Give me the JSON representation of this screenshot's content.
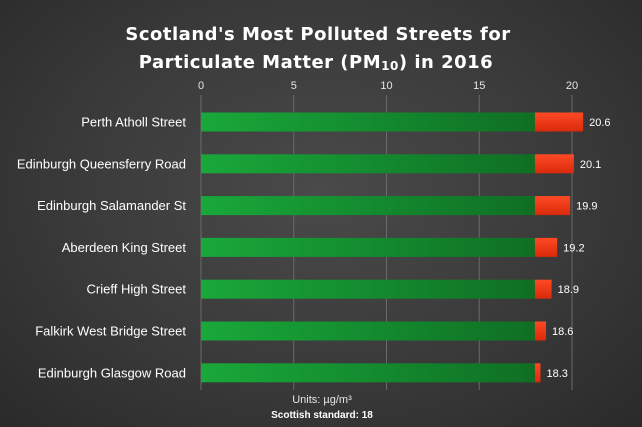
{
  "chart_data": {
    "type": "bar",
    "orientation": "horizontal",
    "title_line1": "Scotland's Most Polluted Streets for",
    "title_line2_prefix": "Particulate Matter (PM",
    "title_line2_sub": "10",
    "title_line2_suffix": ") in 2016",
    "categories": [
      "Perth Atholl Street",
      "Edinburgh Queensferry Road",
      "Edinburgh Salamander St",
      "Aberdeen King Street",
      "Crieff High Street",
      "Falkirk West Bridge Street",
      "Edinburgh Glasgow Road"
    ],
    "values": [
      20.6,
      20.1,
      19.9,
      19.2,
      18.9,
      18.6,
      18.3
    ],
    "data_labels": [
      "20.6",
      "20.1",
      "19.9",
      "19.2",
      "18.9",
      "18.6",
      "18.3"
    ],
    "threshold": 18,
    "xlim": [
      0,
      22
    ],
    "xticks": [
      0,
      5,
      10,
      15,
      20
    ],
    "xtick_labels": [
      "0",
      "5",
      "10",
      "15",
      "20"
    ],
    "axis_position": "top",
    "grid": true,
    "below_color": "#14902e",
    "above_color": "#e43414",
    "units_label": "Units:  µg/m³",
    "standard_label": "Scottish standard:  18"
  }
}
